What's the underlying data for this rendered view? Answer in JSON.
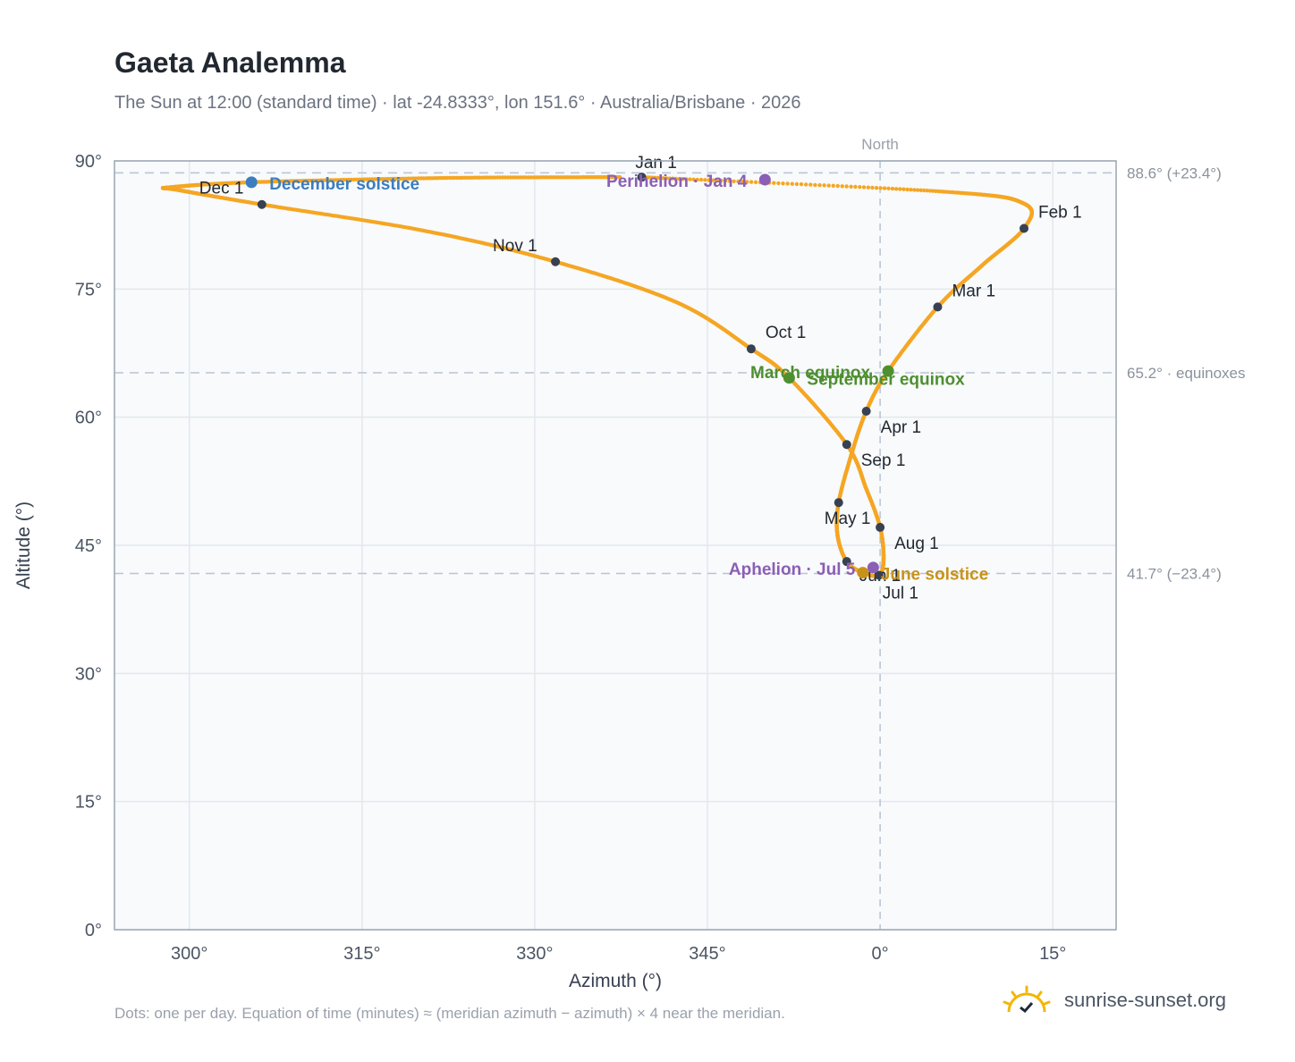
{
  "header": {
    "title": "Gaeta Analemma",
    "subtitle": "The Sun at 12:00 (standard time) · lat -24.8333°, lon 151.6° · Australia/Brisbane · 2026"
  },
  "footer": {
    "note": "Dots: one per day. Equation of time (minutes) ≈ (meridian azimuth − azimuth) × 4 near the meridian.",
    "brand": "sunrise-sunset.org",
    "logo_icon": "sun-logo-icon"
  },
  "colors": {
    "path": "#f5a623",
    "month_marker": "#374151",
    "december_solstice": "#3b7dbf",
    "june_solstice": "#c8921a",
    "equinox": "#4e8f2f",
    "apsis": "#8b5fb5",
    "reference_line": "#b7c4d3",
    "plot_bg": "#f8fafc"
  },
  "chart_data": {
    "type": "scatter",
    "title": "Gaeta Analemma",
    "xlabel": "Azimuth (°)",
    "ylabel": "Altitude (°)",
    "xlim": [
      293.5,
      20.5
    ],
    "ylim": [
      0,
      90
    ],
    "grid": true,
    "x_ticks": [
      {
        "value": 300,
        "label": "300°"
      },
      {
        "value": 315,
        "label": "315°"
      },
      {
        "value": 330,
        "label": "330°"
      },
      {
        "value": 345,
        "label": "345°"
      },
      {
        "value": 0,
        "label": "0°"
      },
      {
        "value": 15,
        "label": "15°"
      }
    ],
    "y_ticks": [
      {
        "value": 0,
        "label": "0°"
      },
      {
        "value": 15,
        "label": "15°"
      },
      {
        "value": 30,
        "label": "30°"
      },
      {
        "value": 45,
        "label": "45°"
      },
      {
        "value": 60,
        "label": "60°"
      },
      {
        "value": 75,
        "label": "75°"
      },
      {
        "value": 90,
        "label": "90°"
      }
    ],
    "meridian": {
      "azimuth": 0,
      "label": "North"
    },
    "reference_lines": [
      {
        "altitude": 88.6,
        "label": "88.6° (+23.4°)"
      },
      {
        "altitude": 65.2,
        "label": "65.2° · equinoxes"
      },
      {
        "altitude": 41.7,
        "label": "41.7° (−23.4°)"
      }
    ],
    "month_markers": [
      {
        "label": "Jan 1",
        "azimuth": 339.3,
        "altitude": 88.1
      },
      {
        "label": "Feb 1",
        "azimuth": 12.5,
        "altitude": 82.1
      },
      {
        "label": "Mar 1",
        "azimuth": 5.0,
        "altitude": 72.9
      },
      {
        "label": "Apr 1",
        "azimuth": 358.8,
        "altitude": 60.7
      },
      {
        "label": "May 1",
        "azimuth": 356.4,
        "altitude": 50.0
      },
      {
        "label": "Jun 1",
        "azimuth": 357.1,
        "altitude": 43.1
      },
      {
        "label": "Jul 1",
        "azimuth": 359.9,
        "altitude": 41.5
      },
      {
        "label": "Aug 1",
        "azimuth": 0.0,
        "altitude": 47.1
      },
      {
        "label": "Sep 1",
        "azimuth": 357.1,
        "altitude": 56.8
      },
      {
        "label": "Oct 1",
        "azimuth": 348.8,
        "altitude": 68.0
      },
      {
        "label": "Nov 1",
        "azimuth": 331.8,
        "altitude": 78.2
      },
      {
        "label": "Dec 1",
        "azimuth": 306.3,
        "altitude": 84.9
      }
    ],
    "events": [
      {
        "label": "December solstice",
        "azimuth": 305.4,
        "altitude": 87.5,
        "color": "#3b7dbf"
      },
      {
        "label": "Perihelion · Jan 4",
        "azimuth": 350.0,
        "altitude": 87.8,
        "color": "#8b5fb5"
      },
      {
        "label": "March equinox",
        "azimuth": 0.7,
        "altitude": 65.4,
        "color": "#4e8f2f"
      },
      {
        "label": "September equinox",
        "azimuth": 352.1,
        "altitude": 64.6,
        "color": "#4e8f2f"
      },
      {
        "label": "June solstice",
        "azimuth": 358.5,
        "altitude": 41.8,
        "color": "#c8921a"
      },
      {
        "label": "Aphelion · Jul 5",
        "azimuth": 359.4,
        "altitude": 42.4,
        "color": "#8b5fb5"
      }
    ],
    "path": [
      {
        "date": "Jan 1",
        "azimuth": 339.3,
        "altitude": 88.1
      },
      {
        "date": "Jan 16",
        "azimuth": 5.5,
        "altitude": 86.4
      },
      {
        "date": "Jan 24",
        "azimuth": 12.5,
        "altitude": 85.0
      },
      {
        "date": "Feb 1",
        "azimuth": 12.5,
        "altitude": 82.1
      },
      {
        "date": "Feb 15",
        "azimuth": 8.8,
        "altitude": 77.7
      },
      {
        "date": "Mar 1",
        "azimuth": 5.0,
        "altitude": 72.9
      },
      {
        "date": "Mar 20",
        "azimuth": 0.7,
        "altitude": 65.4
      },
      {
        "date": "Apr 1",
        "azimuth": 358.8,
        "altitude": 60.7
      },
      {
        "date": "Apr 15",
        "azimuth": 357.5,
        "altitude": 55.6
      },
      {
        "date": "May 1",
        "azimuth": 356.4,
        "altitude": 50.0
      },
      {
        "date": "May 15",
        "azimuth": 356.3,
        "altitude": 46.2
      },
      {
        "date": "Jun 1",
        "azimuth": 357.1,
        "altitude": 43.1
      },
      {
        "date": "Jun 21",
        "azimuth": 358.5,
        "altitude": 41.8
      },
      {
        "date": "Jul 1",
        "azimuth": 359.9,
        "altitude": 41.5
      },
      {
        "date": "Jul 15",
        "azimuth": 0.3,
        "altitude": 43.4
      },
      {
        "date": "Aug 1",
        "azimuth": 0.0,
        "altitude": 47.1
      },
      {
        "date": "Aug 15",
        "azimuth": 358.8,
        "altitude": 51.6
      },
      {
        "date": "Sep 1",
        "azimuth": 357.1,
        "altitude": 56.8
      },
      {
        "date": "Sep 23",
        "azimuth": 352.1,
        "altitude": 64.6
      },
      {
        "date": "Oct 1",
        "azimuth": 348.8,
        "altitude": 68.0
      },
      {
        "date": "Oct 15",
        "azimuth": 342.4,
        "altitude": 73.4
      },
      {
        "date": "Nov 1",
        "azimuth": 331.8,
        "altitude": 78.2
      },
      {
        "date": "Nov 15",
        "azimuth": 320.5,
        "altitude": 81.8
      },
      {
        "date": "Dec 1",
        "azimuth": 306.3,
        "altitude": 84.9
      },
      {
        "date": "Dec 12",
        "azimuth": 299.0,
        "altitude": 86.6
      },
      {
        "date": "Dec 16",
        "azimuth": 298.3,
        "altitude": 86.9
      },
      {
        "date": "Dec 21",
        "azimuth": 305.4,
        "altitude": 87.5
      },
      {
        "date": "Dec 27",
        "azimuth": 322.0,
        "altitude": 88.0
      },
      {
        "date": "Dec 31",
        "azimuth": 337.5,
        "altitude": 88.1
      }
    ]
  }
}
